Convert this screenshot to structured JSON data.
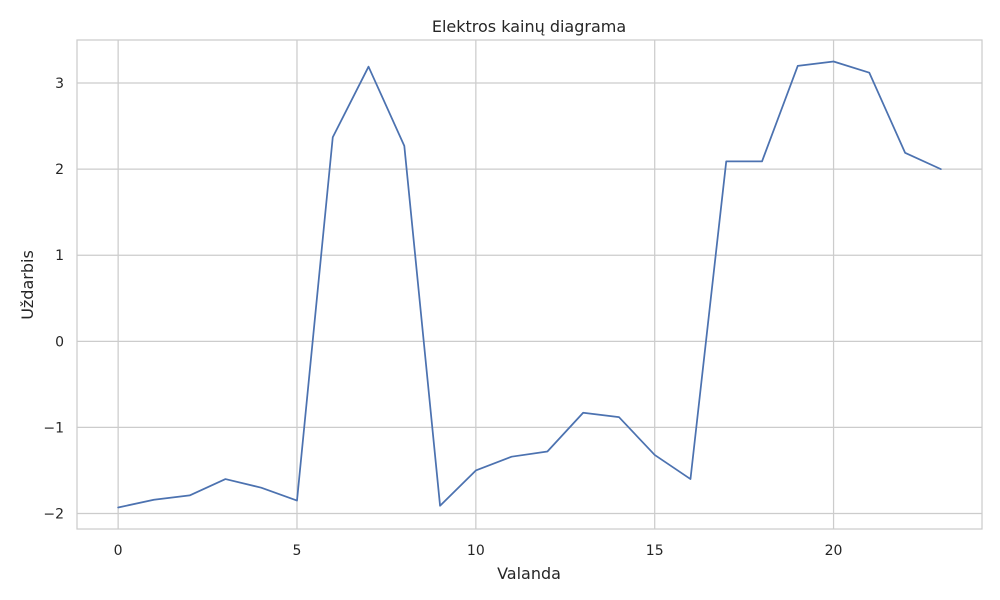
{
  "chart_data": {
    "type": "line",
    "title": "Elektros kainų diagrama",
    "xlabel": "Valanda",
    "ylabel": "Uždarbis",
    "xlim": [
      -1.15,
      24.15
    ],
    "ylim": [
      -2.18,
      3.5
    ],
    "xticks": [
      0,
      5,
      10,
      15,
      20
    ],
    "xtick_labels": [
      "0",
      "5",
      "10",
      "15",
      "20"
    ],
    "yticks": [
      -2,
      -1,
      0,
      1,
      2,
      3
    ],
    "ytick_labels": [
      "−2",
      "−1",
      "0",
      "1",
      "2",
      "3"
    ],
    "grid": true,
    "legend": false,
    "series": [
      {
        "color": "#4c72b0",
        "x": [
          0,
          1,
          2,
          3,
          4,
          5,
          6,
          7,
          8,
          9,
          10,
          11,
          12,
          13,
          14,
          15,
          16,
          17,
          18,
          19,
          20,
          21,
          22,
          23
        ],
        "y": [
          -1.93,
          -1.84,
          -1.79,
          -1.6,
          -1.7,
          -1.85,
          2.37,
          3.19,
          2.27,
          -1.91,
          -1.5,
          -1.34,
          -1.28,
          -0.83,
          -0.88,
          -1.32,
          -1.6,
          2.09,
          2.09,
          3.2,
          3.25,
          3.12,
          2.19,
          2.0
        ]
      }
    ]
  },
  "colors": {
    "line": "#4c72b0",
    "grid": "#cccccc",
    "frame": "#cccccc",
    "text": "#262626",
    "background": "#ffffff"
  }
}
